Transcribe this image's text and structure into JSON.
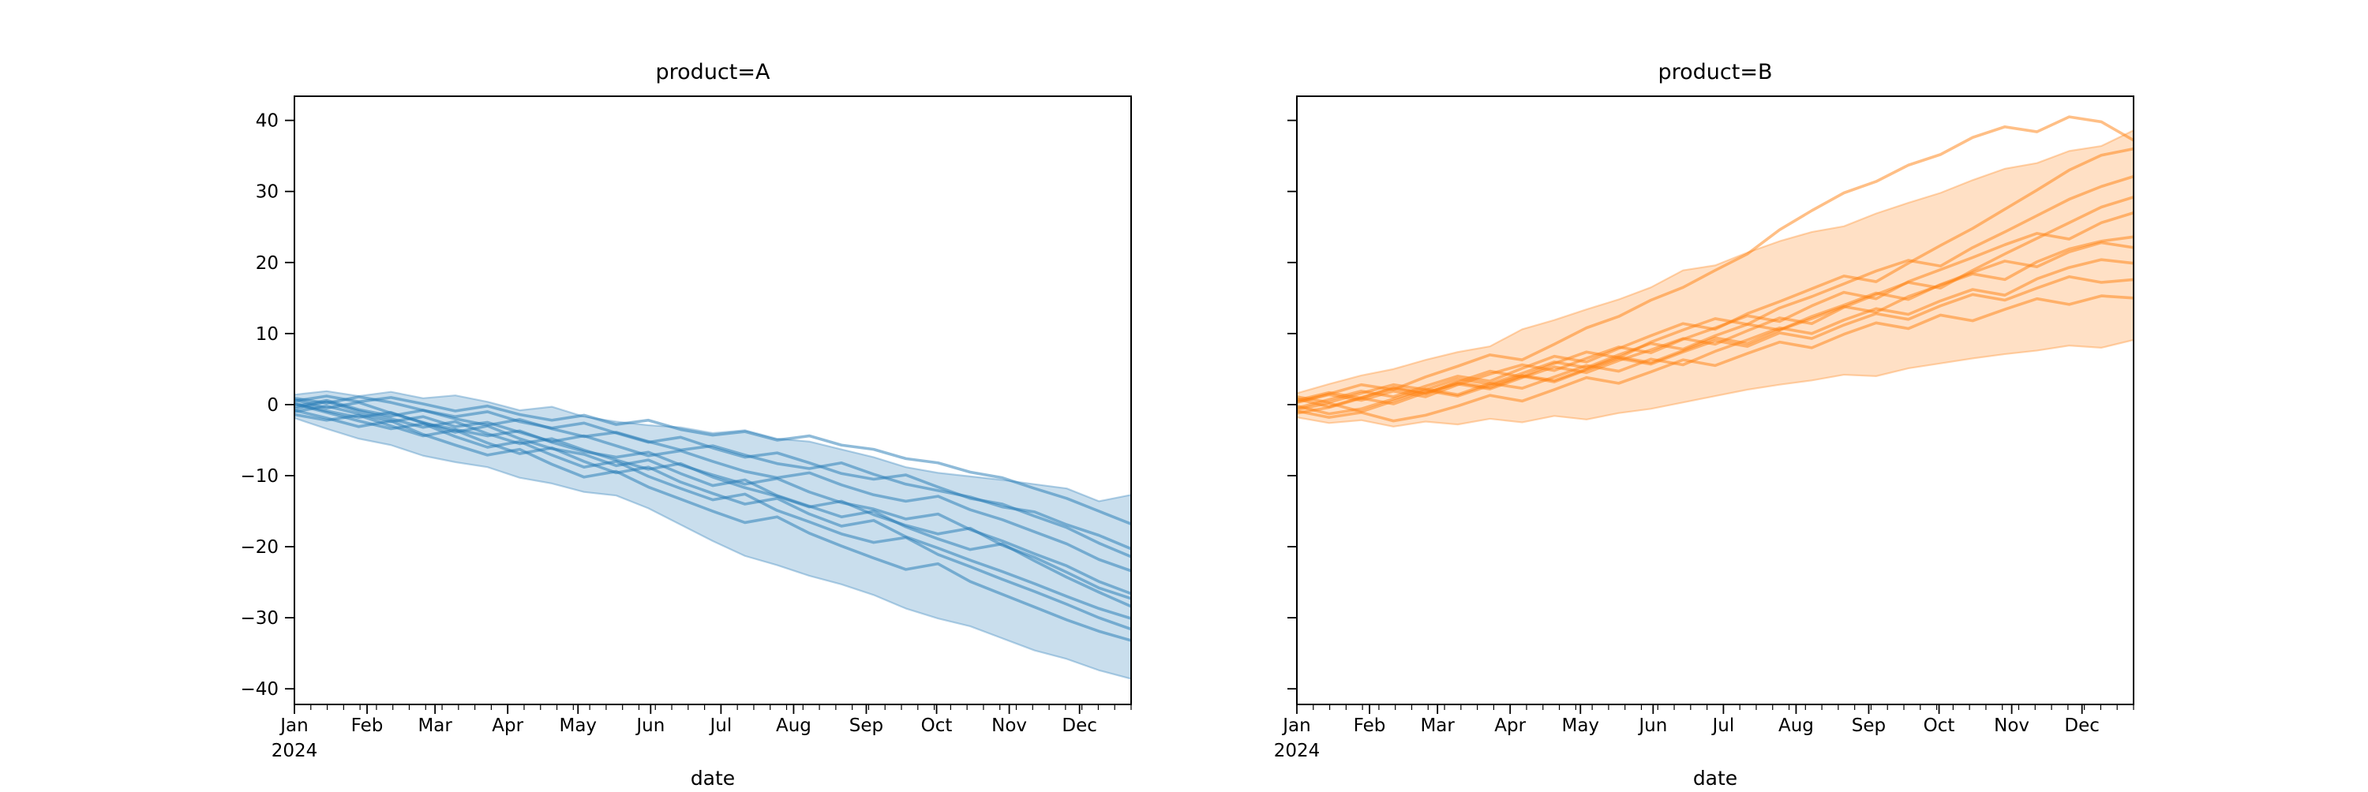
{
  "chart_data": [
    {
      "type": "line",
      "title": "product=A",
      "xlabel": "date",
      "series_color": "#1f77b4",
      "line_alpha": 0.5,
      "band_alpha": 0.24,
      "ylim": [
        -42.2,
        43.4
      ],
      "y_ticks": [
        40,
        30,
        20,
        10,
        0,
        -10,
        -20,
        -30,
        -40
      ],
      "y_tick_labels": [
        "40",
        "30",
        "20",
        "10",
        "0",
        "−10",
        "−20",
        "−30",
        "−40"
      ],
      "y_tick_labels_visible": true,
      "x_axis": {
        "year_label": "2024",
        "month_ticks": [
          {
            "label": "Jan",
            "day": 0
          },
          {
            "label": "Feb",
            "day": 31
          },
          {
            "label": "Mar",
            "day": 60
          },
          {
            "label": "Apr",
            "day": 91
          },
          {
            "label": "May",
            "day": 121
          },
          {
            "label": "Jun",
            "day": 152
          },
          {
            "label": "Jul",
            "day": 182
          },
          {
            "label": "Aug",
            "day": 213
          },
          {
            "label": "Sep",
            "day": 244
          },
          {
            "label": "Oct",
            "day": 274
          },
          {
            "label": "Nov",
            "day": 305
          },
          {
            "label": "Dec",
            "day": 335
          }
        ],
        "minor_tick_interval_days": 7,
        "day_range": [
          0,
          357
        ]
      },
      "band": {
        "max": [
          1.4,
          1.9,
          1.2,
          1.8,
          0.9,
          1.3,
          0.4,
          -0.8,
          -0.3,
          -1.7,
          -2.4,
          -2.9,
          -3.2,
          -4.0,
          -3.6,
          -4.8,
          -5.2,
          -6.3,
          -7.4,
          -8.8,
          -9.6,
          -10.1,
          -10.6,
          -11.2,
          -11.8,
          -13.6,
          -12.7
        ],
        "min": [
          -1.9,
          -3.4,
          -4.8,
          -5.7,
          -7.2,
          -8.1,
          -8.8,
          -10.3,
          -11.1,
          -12.3,
          -12.8,
          -14.6,
          -16.9,
          -19.2,
          -21.3,
          -22.6,
          -24.1,
          -25.3,
          -26.8,
          -28.7,
          -30.1,
          -31.2,
          -32.9,
          -34.6,
          -35.8,
          -37.4,
          -38.6
        ]
      },
      "series": [
        [
          0.5,
          1.2,
          0.4,
          1.0,
          0.1,
          -0.9,
          -0.2,
          -1.4,
          -2.2,
          -1.5,
          -2.8,
          -2.2,
          -3.5,
          -4.3,
          -3.8,
          -5.0,
          -4.4,
          -5.7,
          -6.3,
          -7.6,
          -8.2,
          -9.5,
          -10.3,
          -11.8,
          -13.2,
          -15.0,
          -16.8
        ],
        [
          -0.3,
          0.6,
          -0.7,
          -1.6,
          -0.8,
          -2.0,
          -2.9,
          -2.1,
          -3.4,
          -4.5,
          -3.9,
          -5.2,
          -6.4,
          -5.8,
          -7.1,
          -8.3,
          -9.0,
          -8.2,
          -9.8,
          -11.2,
          -12.1,
          -13.0,
          -14.4,
          -15.1,
          -16.9,
          -18.4,
          -20.3
        ],
        [
          0.9,
          0.2,
          1.1,
          0.3,
          -0.8,
          -1.7,
          -1.0,
          -2.4,
          -3.3,
          -2.6,
          -4.0,
          -5.3,
          -4.6,
          -6.1,
          -7.4,
          -6.8,
          -8.2,
          -9.7,
          -10.5,
          -9.9,
          -11.6,
          -13.2,
          -14.0,
          -15.7,
          -17.3,
          -19.5,
          -21.4
        ],
        [
          -1.0,
          -0.2,
          -1.3,
          -2.4,
          -1.7,
          -3.1,
          -2.5,
          -3.9,
          -5.2,
          -4.4,
          -5.8,
          -7.2,
          -6.5,
          -8.0,
          -9.4,
          -10.3,
          -9.6,
          -11.3,
          -12.7,
          -13.6,
          -12.9,
          -14.8,
          -16.2,
          -17.9,
          -19.6,
          -21.8,
          -23.4
        ],
        [
          0.2,
          -0.9,
          -1.8,
          -1.1,
          -2.6,
          -3.5,
          -4.4,
          -3.7,
          -5.3,
          -6.6,
          -7.4,
          -6.7,
          -8.5,
          -9.9,
          -11.2,
          -10.4,
          -12.3,
          -13.8,
          -14.7,
          -16.1,
          -15.4,
          -17.6,
          -19.2,
          -21.0,
          -22.7,
          -24.9,
          -26.6
        ],
        [
          -0.6,
          0.4,
          -0.9,
          -2.0,
          -3.2,
          -2.4,
          -4.1,
          -5.5,
          -4.8,
          -6.4,
          -7.8,
          -9.1,
          -8.3,
          -10.2,
          -11.7,
          -12.9,
          -14.4,
          -13.6,
          -15.5,
          -17.0,
          -18.2,
          -17.4,
          -19.8,
          -21.5,
          -23.6,
          -25.8,
          -27.3
        ],
        [
          0.7,
          -0.5,
          0.3,
          -1.2,
          -2.5,
          -3.9,
          -3.0,
          -4.8,
          -6.2,
          -7.0,
          -8.6,
          -7.8,
          -9.7,
          -11.4,
          -10.6,
          -12.8,
          -14.3,
          -15.8,
          -15.0,
          -17.2,
          -18.9,
          -20.4,
          -19.6,
          -22.0,
          -24.3,
          -26.4,
          -28.4
        ],
        [
          -1.4,
          -2.2,
          -1.5,
          -3.0,
          -4.4,
          -3.6,
          -5.4,
          -6.9,
          -6.1,
          -8.0,
          -9.6,
          -8.8,
          -10.9,
          -12.5,
          -14.0,
          -13.2,
          -15.4,
          -17.1,
          -16.3,
          -18.6,
          -20.2,
          -21.9,
          -23.5,
          -25.2,
          -27.0,
          -28.7,
          -30.1
        ],
        [
          0.1,
          -1.1,
          -2.3,
          -3.4,
          -2.7,
          -4.5,
          -6.0,
          -5.2,
          -7.1,
          -8.8,
          -8.0,
          -10.1,
          -11.8,
          -13.4,
          -12.6,
          -14.9,
          -16.5,
          -18.2,
          -19.4,
          -18.7,
          -21.1,
          -22.8,
          -24.6,
          -26.3,
          -28.1,
          -30.0,
          -31.6
        ],
        [
          -0.8,
          -1.9,
          -3.1,
          -2.3,
          -4.2,
          -5.7,
          -7.1,
          -6.3,
          -8.4,
          -10.2,
          -9.4,
          -11.6,
          -13.3,
          -15.0,
          -16.6,
          -15.8,
          -18.1,
          -19.9,
          -21.6,
          -23.2,
          -22.4,
          -24.9,
          -26.7,
          -28.5,
          -30.3,
          -31.9,
          -33.2
        ]
      ]
    },
    {
      "type": "line",
      "title": "product=B",
      "xlabel": "date",
      "series_color": "#ff7f0e",
      "line_alpha": 0.5,
      "band_alpha": 0.24,
      "ylim": [
        -42.2,
        43.4
      ],
      "y_ticks": [
        40,
        30,
        20,
        10,
        0,
        -10,
        -20,
        -30,
        -40
      ],
      "y_tick_labels": [
        "40",
        "30",
        "20",
        "10",
        "0",
        "−10",
        "−20",
        "−30",
        "−40"
      ],
      "y_tick_labels_visible": false,
      "x_axis": {
        "year_label": "2024",
        "month_ticks": [
          {
            "label": "Jan",
            "day": 0
          },
          {
            "label": "Feb",
            "day": 31
          },
          {
            "label": "Mar",
            "day": 60
          },
          {
            "label": "Apr",
            "day": 91
          },
          {
            "label": "May",
            "day": 121
          },
          {
            "label": "Jun",
            "day": 152
          },
          {
            "label": "Jul",
            "day": 182
          },
          {
            "label": "Aug",
            "day": 213
          },
          {
            "label": "Sep",
            "day": 244
          },
          {
            "label": "Oct",
            "day": 274
          },
          {
            "label": "Nov",
            "day": 305
          },
          {
            "label": "Dec",
            "day": 335
          }
        ],
        "minor_tick_interval_days": 7,
        "day_range": [
          0,
          357
        ]
      },
      "band": {
        "max": [
          1.6,
          2.9,
          4.1,
          5.0,
          6.3,
          7.4,
          8.2,
          10.6,
          11.9,
          13.4,
          14.8,
          16.5,
          18.9,
          19.6,
          21.4,
          23.0,
          24.3,
          25.1,
          26.9,
          28.4,
          29.8,
          31.6,
          33.2,
          34.0,
          35.7,
          36.4,
          38.6
        ],
        "min": [
          -1.8,
          -2.6,
          -2.2,
          -3.1,
          -2.4,
          -2.8,
          -2.0,
          -2.5,
          -1.6,
          -2.1,
          -1.2,
          -0.6,
          0.3,
          1.2,
          2.1,
          2.8,
          3.4,
          4.2,
          4.0,
          5.1,
          5.8,
          6.5,
          7.1,
          7.6,
          8.3,
          8.0,
          9.1
        ]
      },
      "series": [
        [
          0.4,
          1.5,
          2.8,
          2.1,
          3.9,
          5.4,
          7.0,
          6.3,
          8.5,
          10.8,
          12.4,
          14.7,
          16.5,
          18.9,
          21.2,
          24.6,
          27.3,
          29.8,
          31.4,
          33.7,
          35.2,
          37.6,
          39.1,
          38.4,
          40.5,
          39.8,
          37.2
        ],
        [
          -0.5,
          0.7,
          1.9,
          1.1,
          2.6,
          4.0,
          3.3,
          5.1,
          6.8,
          6.0,
          7.9,
          9.7,
          11.4,
          10.6,
          12.8,
          14.5,
          16.3,
          18.1,
          17.3,
          19.9,
          22.4,
          24.8,
          27.5,
          30.2,
          33.0,
          35.1,
          36.0
        ],
        [
          0.8,
          -0.3,
          1.0,
          2.3,
          1.5,
          3.2,
          4.7,
          3.9,
          5.8,
          7.4,
          6.6,
          8.8,
          10.5,
          12.1,
          11.3,
          13.6,
          15.2,
          17.0,
          18.8,
          20.3,
          19.5,
          22.1,
          24.3,
          26.6,
          28.9,
          30.7,
          32.1
        ],
        [
          -1.2,
          -0.4,
          0.9,
          0.1,
          1.7,
          2.9,
          2.2,
          3.8,
          5.3,
          4.5,
          6.2,
          7.7,
          9.3,
          8.5,
          10.4,
          12.2,
          11.4,
          13.7,
          15.5,
          17.2,
          16.4,
          18.9,
          21.2,
          23.4,
          25.6,
          27.8,
          29.2
        ],
        [
          0.3,
          1.4,
          0.6,
          1.9,
          1.1,
          2.8,
          4.3,
          5.6,
          4.8,
          6.5,
          8.1,
          7.3,
          9.2,
          10.8,
          12.5,
          11.7,
          13.9,
          15.8,
          14.9,
          17.3,
          19.0,
          20.7,
          22.5,
          24.1,
          23.3,
          25.6,
          27.0
        ],
        [
          -0.7,
          0.2,
          -1.0,
          0.5,
          2.0,
          1.2,
          2.7,
          4.1,
          3.4,
          5.0,
          6.7,
          5.9,
          7.6,
          9.4,
          8.6,
          10.5,
          12.1,
          13.8,
          13.0,
          15.2,
          16.8,
          18.4,
          17.6,
          20.1,
          21.9,
          23.0,
          23.6
        ],
        [
          1.1,
          0.3,
          1.6,
          2.8,
          2.1,
          3.6,
          2.9,
          4.4,
          6.0,
          5.2,
          7.0,
          8.6,
          7.8,
          9.7,
          11.3,
          10.5,
          12.4,
          14.0,
          15.7,
          14.8,
          16.9,
          18.6,
          20.2,
          19.4,
          21.5,
          22.8,
          22.1
        ],
        [
          -0.2,
          -1.3,
          -0.6,
          0.8,
          2.2,
          1.4,
          3.0,
          2.3,
          3.9,
          5.5,
          4.7,
          6.4,
          5.6,
          7.5,
          9.1,
          10.8,
          10.0,
          11.9,
          13.5,
          12.7,
          14.6,
          16.2,
          15.4,
          17.7,
          19.3,
          20.4,
          19.9
        ],
        [
          0.6,
          1.7,
          0.9,
          2.4,
          1.6,
          3.1,
          2.4,
          4.0,
          3.2,
          4.9,
          6.5,
          5.7,
          7.4,
          9.0,
          8.2,
          10.1,
          9.3,
          11.2,
          12.8,
          12.0,
          13.9,
          15.5,
          14.7,
          16.4,
          18.0,
          17.2,
          17.6
        ],
        [
          -0.9,
          -1.8,
          -1.1,
          -2.3,
          -1.5,
          -0.2,
          1.3,
          0.5,
          2.1,
          3.8,
          3.0,
          4.6,
          6.3,
          5.5,
          7.2,
          8.8,
          8.0,
          9.9,
          11.5,
          10.7,
          12.6,
          11.8,
          13.4,
          14.9,
          14.1,
          15.3,
          15.0
        ]
      ]
    }
  ]
}
